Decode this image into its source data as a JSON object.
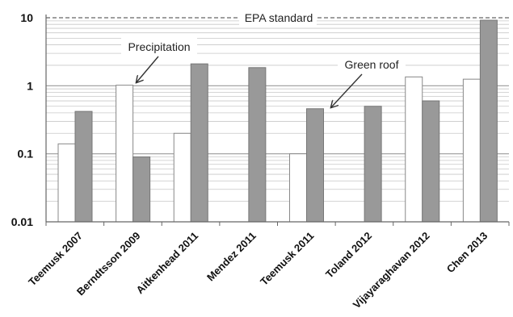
{
  "chart_data": {
    "type": "bar",
    "title": "",
    "xlabel": "",
    "ylabel": "",
    "y_scale": "log",
    "ylim": [
      0.01,
      10
    ],
    "y_ticks": [
      0.01,
      0.1,
      1,
      10
    ],
    "y_tick_labels": [
      "0.01",
      "0.1",
      "1",
      "10"
    ],
    "grid": true,
    "legend": "none",
    "categories": [
      "Teemusk 2007",
      "Berndtsson 2009",
      "Aitkenhead 2011",
      "Mendez 2011",
      "Teemusk 2011",
      "Toland 2012",
      "Vijayaraghavan 2012",
      "Chen 2013"
    ],
    "series": [
      {
        "name": "Precipitation",
        "color": "#ffffff",
        "values": [
          0.14,
          1.02,
          0.2,
          null,
          0.1,
          null,
          1.35,
          1.25
        ]
      },
      {
        "name": "Green roof",
        "color": "#999999",
        "values": [
          0.42,
          0.09,
          2.1,
          1.85,
          0.46,
          0.5,
          0.6,
          9.2
        ]
      }
    ],
    "reference_line": {
      "value": 10,
      "label": "EPA standard"
    },
    "annotations": [
      {
        "text": "Precipitation",
        "points_to": "Berndtsson 2009 precipitation bar"
      },
      {
        "text": "Green roof",
        "points_to": "Teemusk 2011 green roof bar"
      }
    ]
  }
}
